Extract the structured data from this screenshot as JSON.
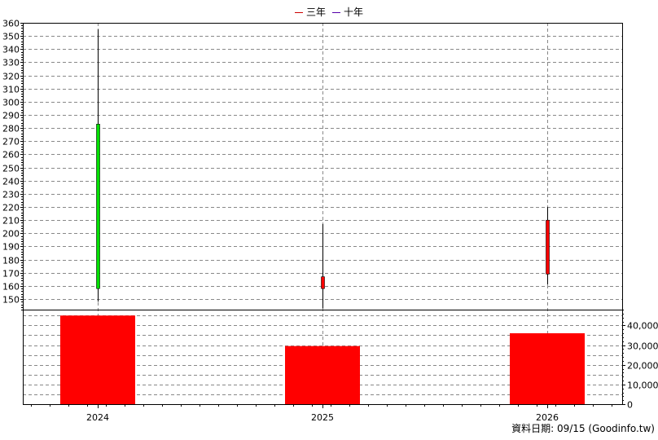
{
  "legend": [
    {
      "label": "三年",
      "color": "#cc0000"
    },
    {
      "label": "十年",
      "color": "#5500aa"
    }
  ],
  "footer": {
    "text": "資料日期: 09/15  (Goodinfo.tw)"
  },
  "chart_data": [
    {
      "type": "candlestick",
      "categories": [
        "2024",
        "2025",
        "2026"
      ],
      "ohlc": [
        {
          "x": "2024",
          "open": 158,
          "high": 355,
          "low": 148,
          "close": 283,
          "color": "#00e000"
        },
        {
          "x": "2025",
          "open": 167,
          "high": 207,
          "low": 143,
          "close": 158,
          "color": "#ff0000"
        },
        {
          "x": "2026",
          "open": 210,
          "high": 220,
          "low": 161,
          "close": 169,
          "color": "#ff0000"
        }
      ],
      "ylim": [
        142,
        360
      ],
      "yticks": [
        150,
        160,
        170,
        180,
        190,
        200,
        210,
        220,
        230,
        240,
        250,
        260,
        270,
        280,
        290,
        300,
        310,
        320,
        330,
        340,
        350,
        360
      ],
      "grid": true,
      "legend_position": "top-center"
    },
    {
      "type": "bar",
      "categories": [
        "2024",
        "2025",
        "2026"
      ],
      "values": [
        45000,
        29500,
        36000
      ],
      "color": "#ff0000",
      "ylim": [
        0,
        48000
      ],
      "yticks": [
        0,
        10000,
        20000,
        30000,
        40000
      ],
      "ytick_labels": [
        "0",
        "10,000",
        "20,000",
        "30,000",
        "40,000"
      ],
      "grid": true
    }
  ]
}
